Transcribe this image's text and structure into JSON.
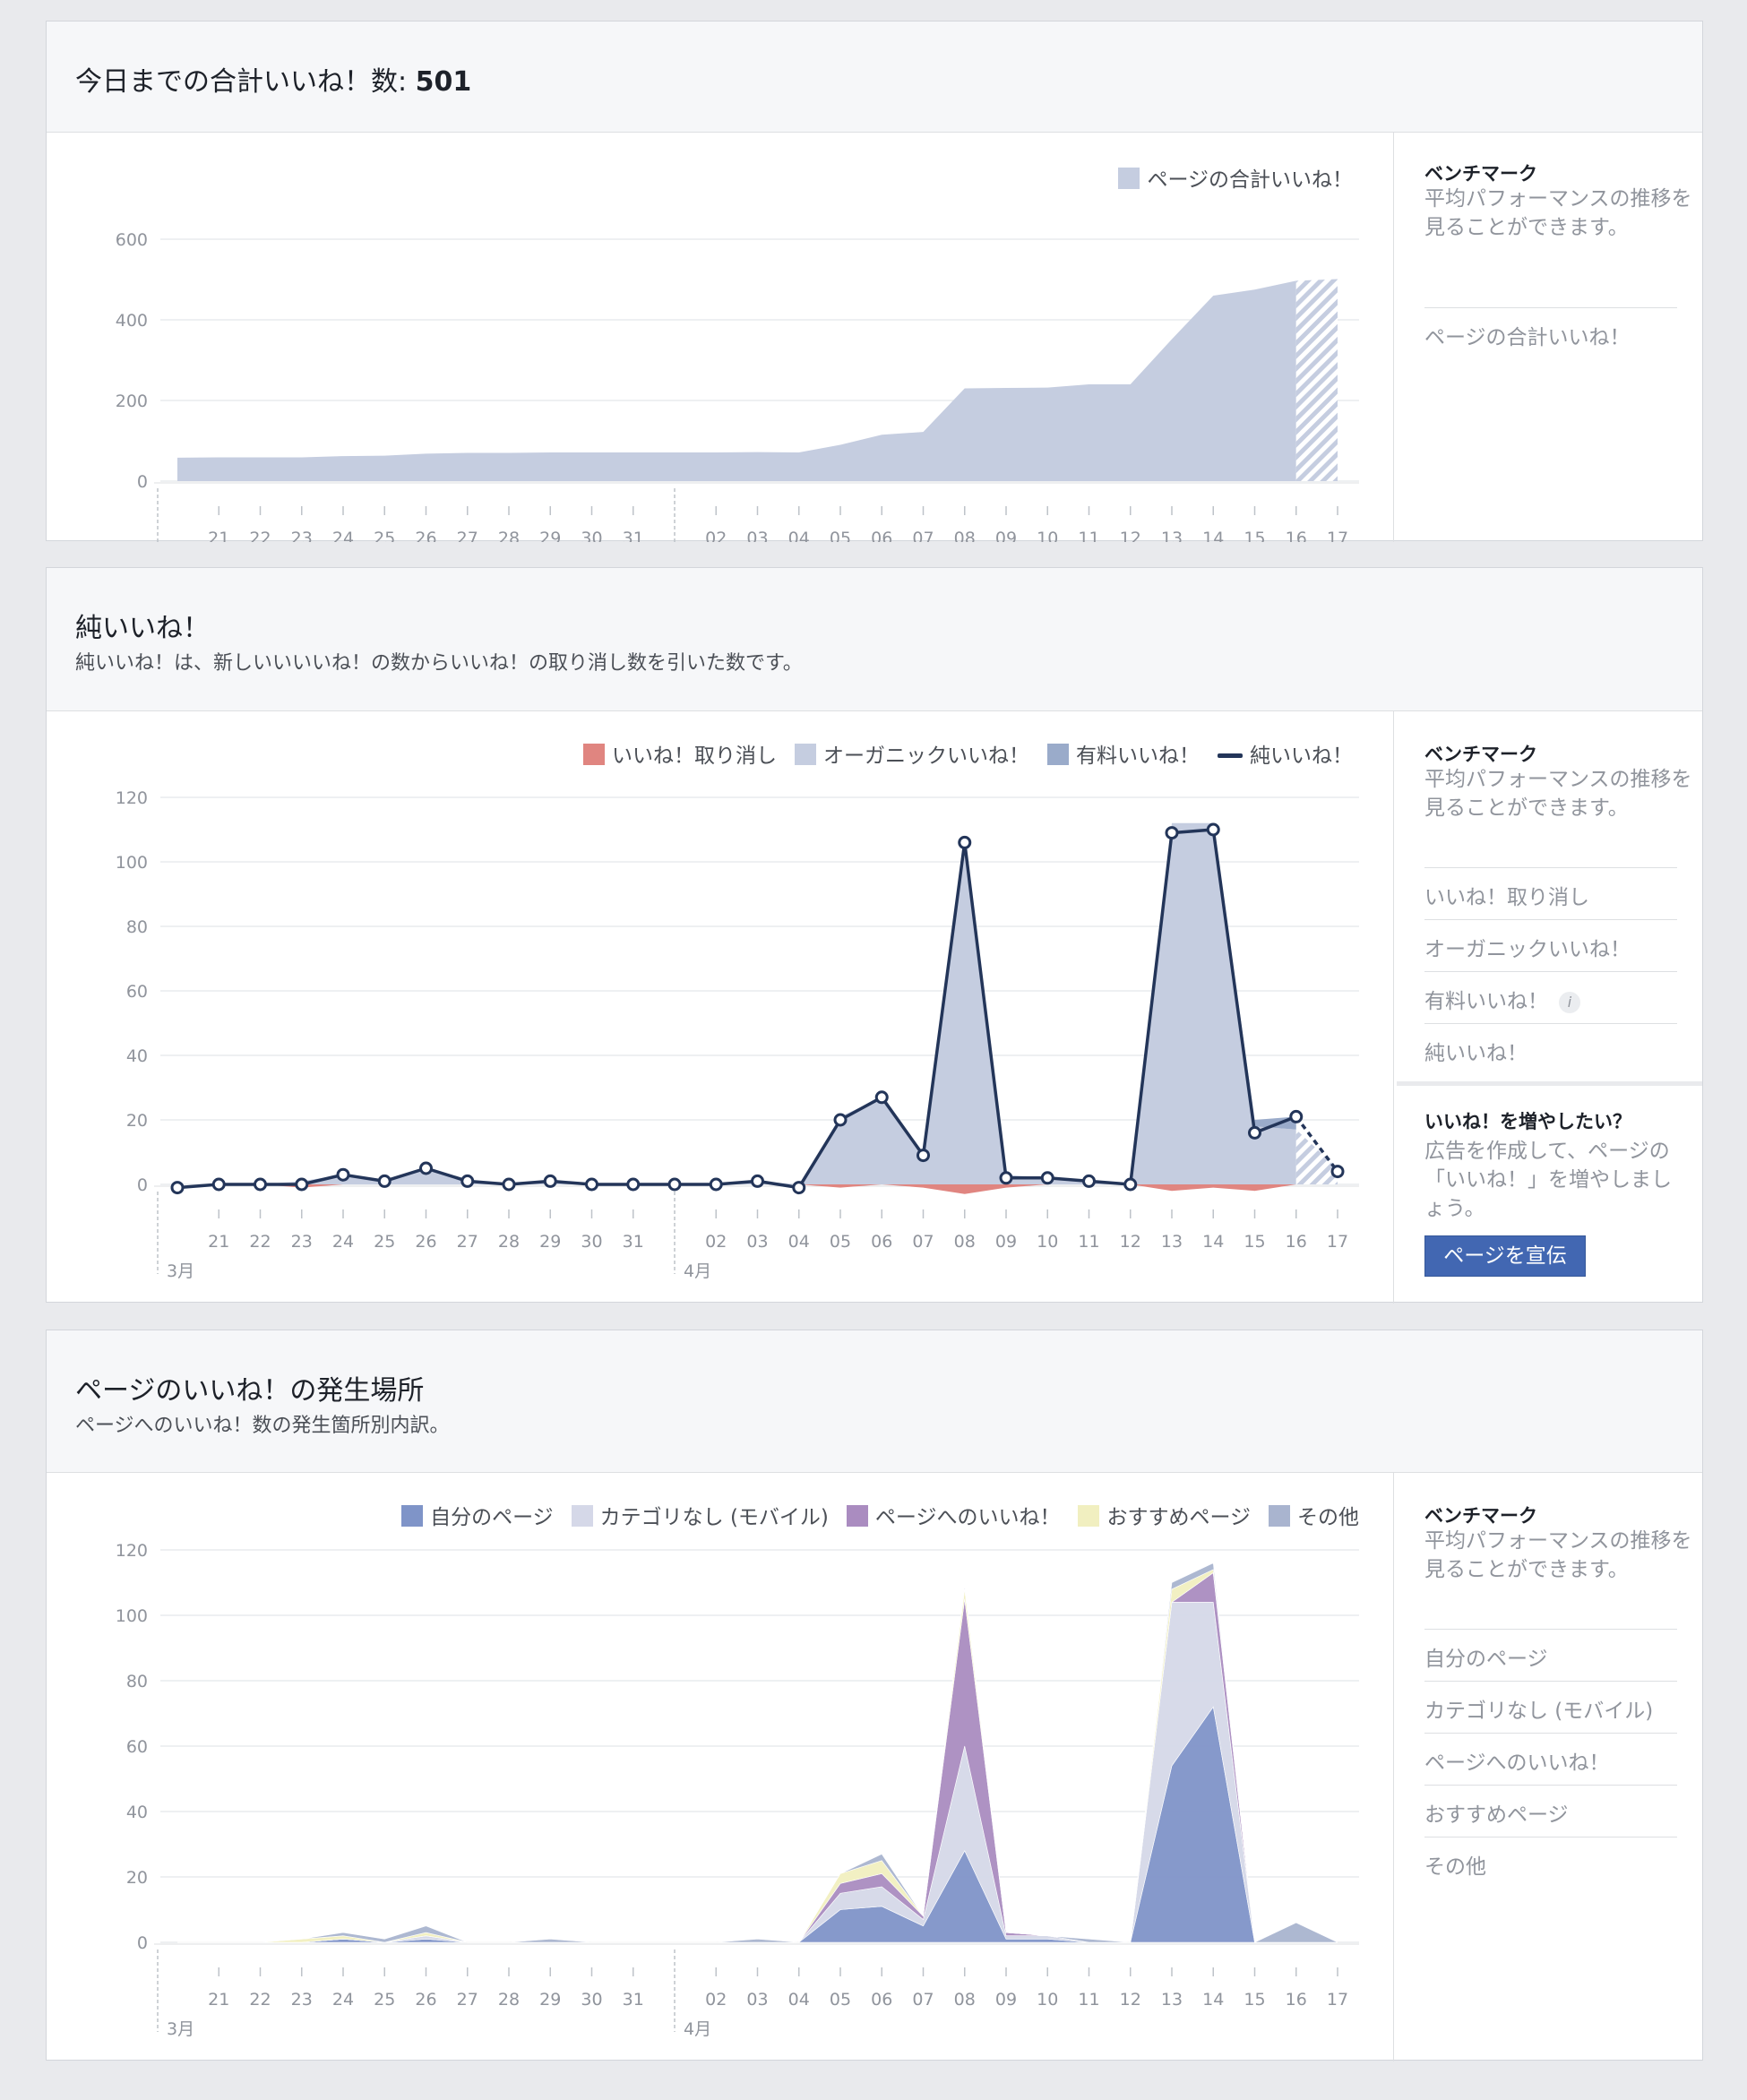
{
  "total_likes": {
    "title_prefix": "今日までの合計いいね！数: ",
    "total": "501",
    "legend": [
      {
        "label": "ページの合計いいね！",
        "color": "#c5cde0",
        "kind": "swatch"
      }
    ],
    "sidebar": {
      "title": "ベンチマーク",
      "desc": "平均パフォーマンスの推移を見ることができます。",
      "items": [
        "ページの合計いいね！"
      ]
    }
  },
  "net_likes": {
    "title": "純いいね！",
    "subtitle": "純いいね！は、新しいいいいね！の数からいいね！の取り消し数を引いた数です。",
    "legend": [
      {
        "label": "いいね！取り消し",
        "color": "#e08580",
        "kind": "swatch"
      },
      {
        "label": "オーガニックいいね！",
        "color": "#c5cde0",
        "kind": "swatch"
      },
      {
        "label": "有料いいね！",
        "color": "#9aabca",
        "kind": "swatch"
      },
      {
        "label": "純いいね！",
        "color": "#233559",
        "kind": "line"
      }
    ],
    "sidebar": {
      "title": "ベンチマーク",
      "desc": "平均パフォーマンスの推移を見ることができます。",
      "items": [
        "いいね！取り消し",
        "オーガニックいいね！",
        "有料いいね！",
        "純いいね！"
      ],
      "info_icon": "info-icon",
      "promo_title": "いいね！を増やしたい？",
      "promo_desc": "広告を作成して、ページの「いいね！」を増やしましょう。",
      "promo_button": "ページを宣伝"
    }
  },
  "like_sources": {
    "title": "ページのいいね！の発生場所",
    "subtitle": "ページへのいいね！数の発生箇所別内訳。",
    "legend": [
      {
        "label": "自分のページ",
        "color": "#7f94c8",
        "kind": "swatch"
      },
      {
        "label": "カテゴリなし (モバイル)",
        "color": "#d5d8e8",
        "kind": "swatch"
      },
      {
        "label": "ページへのいいね！",
        "color": "#aa8cc0",
        "kind": "swatch"
      },
      {
        "label": "おすすめページ",
        "color": "#f1efc0",
        "kind": "swatch"
      },
      {
        "label": "その他",
        "color": "#a9b4cf",
        "kind": "swatch"
      }
    ],
    "sidebar": {
      "title": "ベンチマーク",
      "desc": "平均パフォーマンスの推移を見ることができます。",
      "items": [
        "自分のページ",
        "カテゴリなし (モバイル)",
        "ページへのいいね！",
        "おすすめページ",
        "その他"
      ]
    }
  },
  "chart_data": [
    {
      "type": "area",
      "x": [
        "20",
        "21",
        "22",
        "23",
        "24",
        "25",
        "26",
        "27",
        "28",
        "29",
        "30",
        "31",
        "01",
        "02",
        "03",
        "04",
        "05",
        "06",
        "07",
        "08",
        "09",
        "10",
        "11",
        "12",
        "13",
        "14",
        "15",
        "16",
        "17"
      ],
      "x_tick_labels": [
        "21",
        "22",
        "23",
        "24",
        "25",
        "26",
        "27",
        "28",
        "29",
        "30",
        "31",
        "02",
        "03",
        "04",
        "05",
        "06",
        "07",
        "08",
        "09",
        "10",
        "11",
        "12",
        "13",
        "14",
        "15",
        "16",
        "17"
      ],
      "month_labels": [
        "3月",
        "4月"
      ],
      "series": [
        {
          "name": "ページの合計いいね！",
          "color": "#c5cde0",
          "values": [
            58,
            59,
            59,
            59,
            62,
            63,
            68,
            70,
            70,
            71,
            71,
            71,
            71,
            71,
            72,
            71,
            90,
            115,
            122,
            230,
            231,
            232,
            240,
            240,
            352,
            460,
            475,
            497,
            501
          ]
        }
      ],
      "ylim": [
        0,
        600
      ],
      "yticks": [
        0,
        200,
        400,
        600
      ],
      "grid": true,
      "legend_position": "top-right",
      "last_point_partial": true
    },
    {
      "type": "area",
      "x": [
        "20",
        "21",
        "22",
        "23",
        "24",
        "25",
        "26",
        "27",
        "28",
        "29",
        "30",
        "31",
        "01",
        "02",
        "03",
        "04",
        "05",
        "06",
        "07",
        "08",
        "09",
        "10",
        "11",
        "12",
        "13",
        "14",
        "15",
        "16",
        "17"
      ],
      "x_tick_labels": [
        "21",
        "22",
        "23",
        "24",
        "25",
        "26",
        "27",
        "28",
        "29",
        "30",
        "31",
        "02",
        "03",
        "04",
        "05",
        "06",
        "07",
        "08",
        "09",
        "10",
        "11",
        "12",
        "13",
        "14",
        "15",
        "16",
        "17"
      ],
      "month_labels": [
        "3月",
        "4月"
      ],
      "series": [
        {
          "name": "いいね！取り消し",
          "color": "#e08580",
          "kind": "area",
          "values": [
            0,
            0,
            0,
            -1,
            0,
            0,
            0,
            0,
            0,
            0,
            0,
            0,
            0,
            0,
            0,
            0,
            -1,
            0,
            -1,
            -3,
            -1,
            0,
            0,
            0,
            -2,
            -1,
            -2,
            0,
            -1
          ]
        },
        {
          "name": "オーガニックいいね！",
          "color": "#c5cde0",
          "kind": "area",
          "values": [
            0,
            0,
            0,
            1,
            3,
            1,
            5,
            1,
            0,
            1,
            0,
            0,
            0,
            0,
            1,
            0,
            21,
            27,
            10,
            108,
            3,
            2,
            1,
            0,
            112,
            112,
            18,
            17,
            5
          ]
        },
        {
          "name": "有料いいね！",
          "color": "#9aabca",
          "kind": "area",
          "values": [
            0,
            0,
            0,
            0,
            0,
            0,
            0,
            0,
            0,
            0,
            0,
            0,
            0,
            0,
            0,
            0,
            0,
            0,
            0,
            0,
            0,
            0,
            0,
            0,
            0,
            0,
            2,
            4,
            0
          ]
        },
        {
          "name": "純いいね！",
          "color": "#233559",
          "kind": "line",
          "values": [
            -1,
            0,
            0,
            0,
            3,
            1,
            5,
            1,
            0,
            1,
            0,
            0,
            0,
            0,
            1,
            -1,
            20,
            27,
            9,
            106,
            2,
            2,
            1,
            0,
            109,
            110,
            16,
            21,
            4
          ]
        }
      ],
      "ylim": [
        0,
        120
      ],
      "yticks": [
        0,
        20,
        40,
        60,
        80,
        100,
        120
      ],
      "grid": true,
      "legend_position": "top-right",
      "last_point_partial": true
    },
    {
      "type": "area",
      "stacked": true,
      "x": [
        "20",
        "21",
        "22",
        "23",
        "24",
        "25",
        "26",
        "27",
        "28",
        "29",
        "30",
        "31",
        "01",
        "02",
        "03",
        "04",
        "05",
        "06",
        "07",
        "08",
        "09",
        "10",
        "11",
        "12",
        "13",
        "14",
        "15",
        "16",
        "17"
      ],
      "x_tick_labels": [
        "21",
        "22",
        "23",
        "24",
        "25",
        "26",
        "27",
        "28",
        "29",
        "30",
        "31",
        "02",
        "03",
        "04",
        "05",
        "06",
        "07",
        "08",
        "09",
        "10",
        "11",
        "12",
        "13",
        "14",
        "15",
        "16",
        "17"
      ],
      "month_labels": [
        "3月",
        "4月"
      ],
      "series": [
        {
          "name": "自分のページ",
          "color": "#7f94c8",
          "values": [
            0,
            0,
            0,
            0,
            1,
            0,
            1,
            0,
            0,
            0,
            0,
            0,
            0,
            0,
            0,
            0,
            10,
            11,
            5,
            28,
            1,
            1,
            0,
            0,
            54,
            72,
            0,
            0,
            0
          ]
        },
        {
          "name": "カテゴリなし (モバイル)",
          "color": "#d5d8e8",
          "values": [
            0,
            0,
            0,
            0,
            0,
            0,
            1,
            0,
            0,
            0,
            0,
            0,
            0,
            0,
            0,
            0,
            5,
            6,
            2,
            32,
            1,
            1,
            0,
            0,
            50,
            32,
            0,
            0,
            0
          ]
        },
        {
          "name": "ページへのいいね！",
          "color": "#aa8cc0",
          "values": [
            0,
            0,
            0,
            0,
            0,
            0,
            0,
            0,
            0,
            0,
            0,
            0,
            0,
            0,
            0,
            0,
            3,
            4,
            1,
            45,
            1,
            0,
            0,
            0,
            0,
            9,
            0,
            0,
            0
          ]
        },
        {
          "name": "おすすめページ",
          "color": "#f1efc0",
          "values": [
            0,
            0,
            0,
            1,
            1,
            0,
            1,
            0,
            0,
            0,
            0,
            0,
            0,
            0,
            0,
            0,
            3,
            4,
            0,
            3,
            0,
            0,
            0,
            0,
            4,
            1,
            0,
            0,
            0
          ]
        },
        {
          "name": "その他",
          "color": "#a9b4cf",
          "values": [
            0,
            0,
            0,
            0,
            1,
            1,
            2,
            0,
            0,
            1,
            0,
            0,
            0,
            0,
            1,
            0,
            0,
            2,
            0,
            1,
            0,
            0,
            1,
            0,
            2,
            2,
            0,
            6,
            0
          ]
        }
      ],
      "ylim": [
        0,
        120
      ],
      "yticks": [
        0,
        20,
        40,
        60,
        80,
        100,
        120
      ],
      "grid": true,
      "legend_position": "top-right",
      "last_point_partial": true
    }
  ]
}
